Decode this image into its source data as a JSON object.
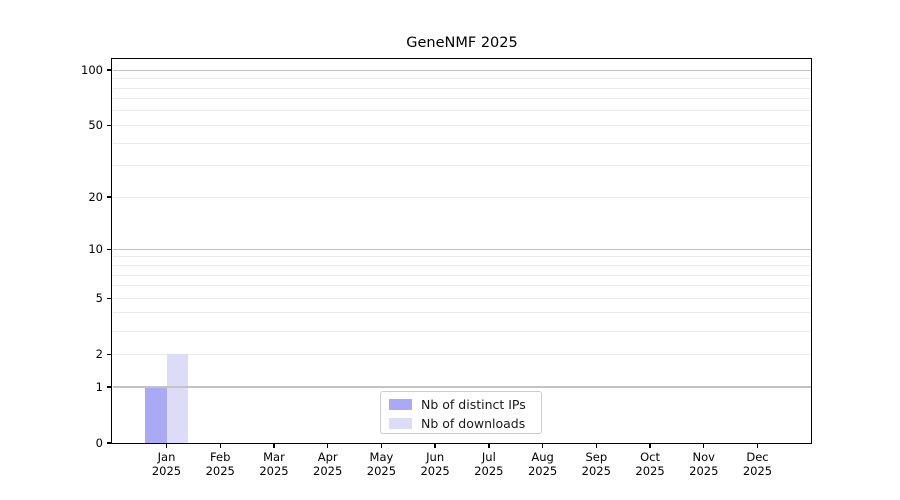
{
  "chart_data": {
    "type": "bar",
    "title": "GeneNMF 2025",
    "categories": [
      "Jan",
      "Feb",
      "Mar",
      "Apr",
      "May",
      "Jun",
      "Jul",
      "Aug",
      "Sep",
      "Oct",
      "Nov",
      "Dec"
    ],
    "x_tick_year": "2025",
    "series": [
      {
        "name": "Nb of distinct IPs",
        "color": "#a9a9f4",
        "values": [
          1,
          0,
          0,
          0,
          0,
          0,
          0,
          0,
          0,
          0,
          0,
          0
        ]
      },
      {
        "name": "Nb of downloads",
        "color": "#dcdcf8",
        "values": [
          2,
          0,
          0,
          0,
          0,
          0,
          0,
          0,
          0,
          0,
          0,
          0
        ]
      }
    ],
    "y_scale": "log10(value+1)",
    "ylim": [
      0,
      115
    ],
    "y_ticks": [
      0,
      1,
      2,
      5,
      10,
      20,
      50,
      100
    ],
    "y_major_gridlines": [
      1,
      10,
      100
    ],
    "y_minor_gridlines": [
      2,
      3,
      4,
      5,
      6,
      7,
      8,
      9,
      20,
      30,
      40,
      50,
      60,
      70,
      80,
      90
    ],
    "grid": true,
    "legend": {
      "position": "lower center"
    },
    "colors": {
      "major_grid": "#c3c3c3",
      "minor_grid": "#ececec",
      "axis": "#000000",
      "text": "#000000",
      "background": "#ffffff"
    }
  }
}
